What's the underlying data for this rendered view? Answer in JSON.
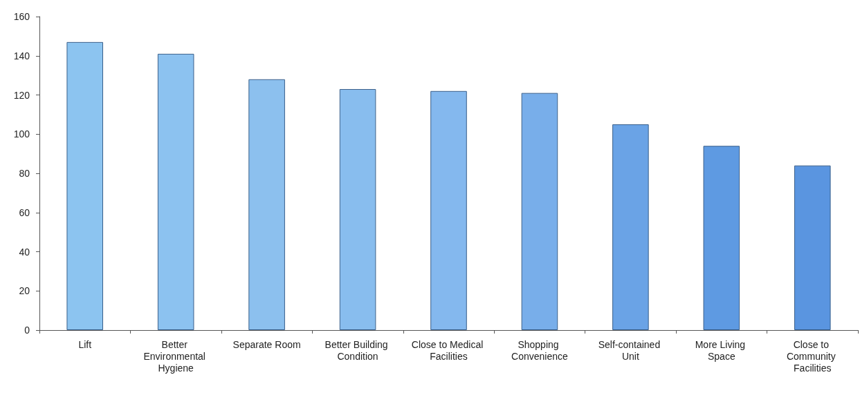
{
  "chart_data": {
    "type": "bar",
    "categories": [
      "Lift",
      "Better Environmental Hygiene",
      "Separate Room",
      "Better Building Condition",
      "Close to Medical Facilities",
      "Shopping Convenience",
      "Self-contained Unit",
      "More Living Space",
      "Close to Community Facilities"
    ],
    "values": [
      147,
      141,
      128,
      123,
      122,
      121,
      105,
      94,
      84
    ],
    "colors": [
      "#8cc4f0",
      "#8cc2f0",
      "#8cc0ee",
      "#88bdee",
      "#84b8ee",
      "#78aeea",
      "#6aa3e6",
      "#5e9ae2",
      "#5a95e0"
    ],
    "ylim": [
      0,
      160
    ],
    "yticks": [
      0,
      20,
      40,
      60,
      80,
      100,
      120,
      140,
      160
    ],
    "grid": false
  }
}
